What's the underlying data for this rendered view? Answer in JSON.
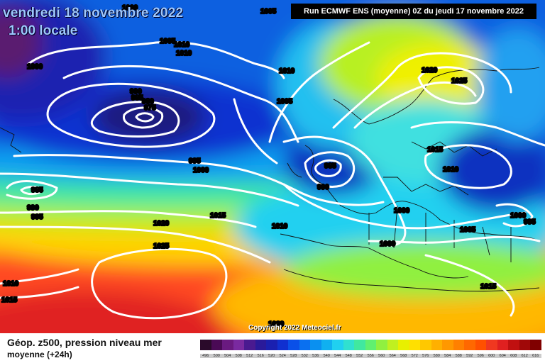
{
  "header": {
    "date": "vendredi 18 novembre 2022",
    "time": "1:00 locale",
    "run": "Run ECMWF ENS (moyenne) 0Z du jeudi 17 novembre 2022"
  },
  "copyright": "Copyright 2022 Meteociel.fr",
  "legend": {
    "title": "Géop. z500, pression niveau mer",
    "subtitle": "moyenne  (+24h)",
    "levels": [
      "496",
      "500",
      "504",
      "508",
      "512",
      "516",
      "520",
      "524",
      "528",
      "532",
      "536",
      "540",
      "544",
      "548",
      "552",
      "556",
      "560",
      "564",
      "568",
      "572",
      "576",
      "580",
      "584",
      "588",
      "592",
      "596",
      "600",
      "604",
      "608",
      "612",
      "616"
    ],
    "colors": [
      "#2a0a2a",
      "#4a0a55",
      "#6a1a80",
      "#7a2aa0",
      "#4a1a90",
      "#2a1a9a",
      "#1a20b0",
      "#1030d0",
      "#0a50e8",
      "#0a70f0",
      "#0a90f0",
      "#10b0f0",
      "#20d0f0",
      "#30e0d0",
      "#40e8a0",
      "#60f070",
      "#90f040",
      "#c0f020",
      "#e8f000",
      "#ffe000",
      "#ffc800",
      "#ffb000",
      "#ff9800",
      "#ff8000",
      "#ff6800",
      "#ff5000",
      "#f03820",
      "#e02020",
      "#c01010",
      "#a00808",
      "#800000"
    ]
  },
  "isobars": [
    {
      "label": "1000"
    },
    {
      "label": "1005"
    },
    {
      "label": "1005"
    },
    {
      "label": "1010"
    },
    {
      "label": "1010"
    },
    {
      "label": "1000"
    },
    {
      "label": "1010"
    },
    {
      "label": "1005"
    },
    {
      "label": "990"
    },
    {
      "label": "985"
    },
    {
      "label": "980"
    },
    {
      "label": "975"
    },
    {
      "label": "1020"
    },
    {
      "label": "1025"
    },
    {
      "label": "1015"
    },
    {
      "label": "1010"
    },
    {
      "label": "995"
    },
    {
      "label": "1000"
    },
    {
      "label": "985"
    },
    {
      "label": "990"
    },
    {
      "label": "985"
    },
    {
      "label": "990"
    },
    {
      "label": "995"
    },
    {
      "label": "1015"
    },
    {
      "label": "1020"
    },
    {
      "label": "1010"
    },
    {
      "label": "1000"
    },
    {
      "label": "1000"
    },
    {
      "label": "1005"
    },
    {
      "label": "995"
    },
    {
      "label": "1000"
    },
    {
      "label": "1025"
    },
    {
      "label": "1010"
    },
    {
      "label": "1015"
    },
    {
      "label": "1015"
    },
    {
      "label": "1020"
    }
  ]
}
